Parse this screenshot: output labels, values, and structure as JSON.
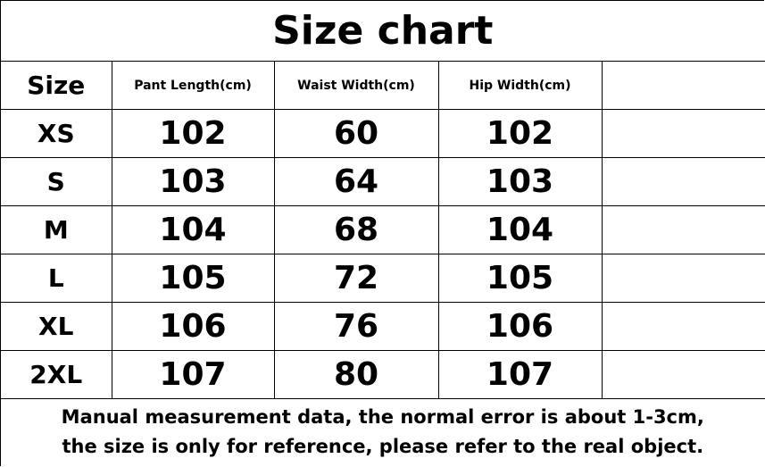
{
  "title": "Size chart",
  "columns": [
    "Size",
    "Pant Length(cm)",
    "Waist Width(cm)",
    "Hip Width(cm)",
    ""
  ],
  "rows": [
    [
      "XS",
      "102",
      "60",
      "102",
      ""
    ],
    [
      "S",
      "103",
      "64",
      "103",
      ""
    ],
    [
      "M",
      "104",
      "68",
      "104",
      ""
    ],
    [
      "L",
      "105",
      "72",
      "105",
      ""
    ],
    [
      "XL",
      "106",
      "76",
      "106",
      ""
    ],
    [
      "2XL",
      "107",
      "80",
      "107",
      ""
    ]
  ],
  "note": {
    "line1": "Manual measurement data, the normal error is about 1-3cm,",
    "line2": "the size is only for reference, please refer to the real object."
  }
}
